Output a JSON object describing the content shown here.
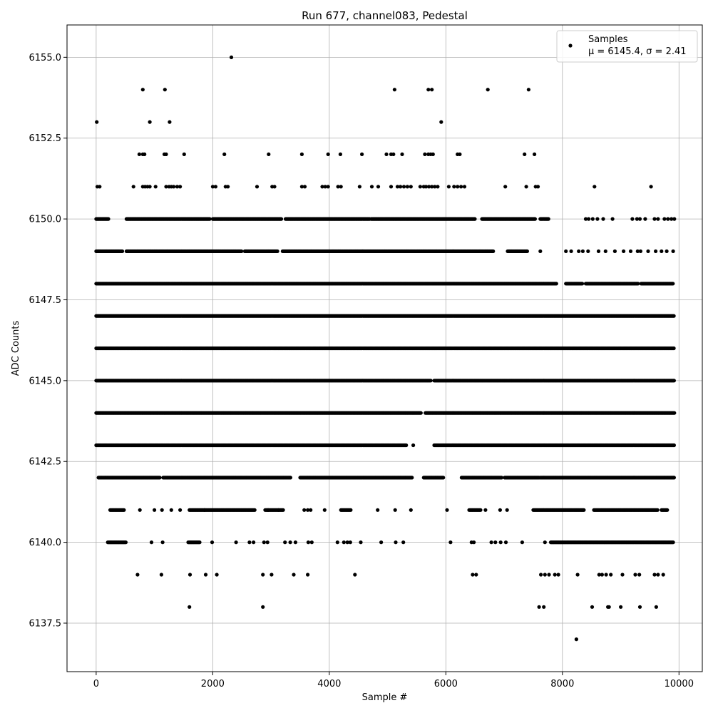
{
  "chart_data": {
    "type": "scatter",
    "title": "Run 677, channel083, Pedestal",
    "xlabel": "Sample #",
    "ylabel": "ADC Counts",
    "xlim": [
      -500,
      10400
    ],
    "ylim": [
      6136.0,
      6156.0
    ],
    "xticks": [
      0,
      2000,
      4000,
      6000,
      8000,
      10000
    ],
    "xtick_labels": [
      "0",
      "2000",
      "4000",
      "6000",
      "8000",
      "10000"
    ],
    "yticks": [
      6137.5,
      6140.0,
      6142.5,
      6145.0,
      6147.5,
      6150.0,
      6152.5,
      6155.0
    ],
    "ytick_labels": [
      "6137.5",
      "6140.0",
      "6142.5",
      "6145.0",
      "6147.5",
      "6150.0",
      "6152.5",
      "6155.0"
    ],
    "grid": true,
    "legend_position": "top-right",
    "legend_label": "Samples",
    "legend_stats_label": "μ = 6145.4, σ = 2.41",
    "marker_color": "#000000",
    "series": [
      {
        "name": "Samples",
        "points": [
          [
            2320,
            6155
          ],
          [
            800,
            6154
          ],
          [
            1180,
            6154
          ],
          [
            5120,
            6154
          ],
          [
            5700,
            6154
          ],
          [
            5760,
            6154
          ],
          [
            6720,
            6154
          ],
          [
            7420,
            6154
          ],
          [
            10,
            6153
          ],
          [
            920,
            6153
          ],
          [
            1260,
            6153
          ],
          [
            5920,
            6153
          ],
          [
            740,
            6152
          ],
          [
            800,
            6152
          ],
          [
            830,
            6152
          ],
          [
            1170,
            6152
          ],
          [
            1200,
            6152
          ],
          [
            1510,
            6152
          ],
          [
            2200,
            6152
          ],
          [
            2960,
            6152
          ],
          [
            3530,
            6152
          ],
          [
            3980,
            6152
          ],
          [
            4190,
            6152
          ],
          [
            4560,
            6152
          ],
          [
            4980,
            6152
          ],
          [
            5060,
            6152
          ],
          [
            5100,
            6152
          ],
          [
            5250,
            6152
          ],
          [
            5640,
            6152
          ],
          [
            5700,
            6152
          ],
          [
            5740,
            6152
          ],
          [
            5780,
            6152
          ],
          [
            6200,
            6152
          ],
          [
            6240,
            6152
          ],
          [
            7350,
            6152
          ],
          [
            7520,
            6152
          ],
          [
            20,
            6151
          ],
          [
            60,
            6151
          ],
          [
            640,
            6151
          ],
          [
            800,
            6151
          ],
          [
            840,
            6151
          ],
          [
            880,
            6151
          ],
          [
            920,
            6151
          ],
          [
            1020,
            6151
          ],
          [
            1200,
            6151
          ],
          [
            1250,
            6151
          ],
          [
            1290,
            6151
          ],
          [
            1330,
            6151
          ],
          [
            1390,
            6151
          ],
          [
            1440,
            6151
          ],
          [
            2000,
            6151
          ],
          [
            2050,
            6151
          ],
          [
            2220,
            6151
          ],
          [
            2260,
            6151
          ],
          [
            2760,
            6151
          ],
          [
            3020,
            6151
          ],
          [
            3060,
            6151
          ],
          [
            3530,
            6151
          ],
          [
            3580,
            6151
          ],
          [
            3880,
            6151
          ],
          [
            3930,
            6151
          ],
          [
            3980,
            6151
          ],
          [
            4150,
            6151
          ],
          [
            4200,
            6151
          ],
          [
            4520,
            6151
          ],
          [
            4730,
            6151
          ],
          [
            4840,
            6151
          ],
          [
            5060,
            6151
          ],
          [
            5170,
            6151
          ],
          [
            5220,
            6151
          ],
          [
            5280,
            6151
          ],
          [
            5340,
            6151
          ],
          [
            5400,
            6151
          ],
          [
            5560,
            6151
          ],
          [
            5620,
            6151
          ],
          [
            5660,
            6151
          ],
          [
            5710,
            6151
          ],
          [
            5760,
            6151
          ],
          [
            5810,
            6151
          ],
          [
            5860,
            6151
          ],
          [
            6050,
            6151
          ],
          [
            6140,
            6151
          ],
          [
            6200,
            6151
          ],
          [
            6260,
            6151
          ],
          [
            6320,
            6151
          ],
          [
            7020,
            6151
          ],
          [
            7380,
            6151
          ],
          [
            7540,
            6151
          ],
          [
            7580,
            6151
          ],
          [
            8550,
            6151
          ],
          [
            9520,
            6151
          ],
          [
            8240,
            6137
          ],
          [
            1600,
            6138
          ],
          [
            2860,
            6138
          ],
          [
            7600,
            6138
          ],
          [
            7680,
            6138
          ],
          [
            8510,
            6138
          ],
          [
            8780,
            6138
          ],
          [
            8800,
            6138
          ],
          [
            9000,
            6138
          ],
          [
            9330,
            6138
          ],
          [
            9610,
            6138
          ],
          [
            710,
            6139
          ],
          [
            1120,
            6139
          ],
          [
            1610,
            6139
          ],
          [
            1880,
            6139
          ],
          [
            2070,
            6139
          ],
          [
            2860,
            6139
          ],
          [
            3010,
            6139
          ],
          [
            3390,
            6139
          ],
          [
            3630,
            6139
          ],
          [
            4440,
            6139
          ],
          [
            6460,
            6139
          ],
          [
            6520,
            6139
          ],
          [
            7630,
            6139
          ],
          [
            7700,
            6139
          ],
          [
            7770,
            6139
          ],
          [
            7870,
            6139
          ],
          [
            7930,
            6139
          ],
          [
            8260,
            6139
          ],
          [
            8630,
            6139
          ],
          [
            8680,
            6139
          ],
          [
            8750,
            6139
          ],
          [
            8830,
            6139
          ],
          [
            9030,
            6139
          ],
          [
            9250,
            6139
          ],
          [
            9320,
            6139
          ],
          [
            9580,
            6139
          ],
          [
            9640,
            6139
          ],
          [
            9730,
            6139
          ]
        ],
        "bands": [
          {
            "y": 6150,
            "ranges": [
              [
                0,
                220
              ],
              [
                520,
                1960
              ],
              [
                2000,
                3180
              ],
              [
                3250,
                4700
              ],
              [
                4720,
                6500
              ],
              [
                6620,
                7540
              ],
              [
                7620,
                7760
              ]
            ],
            "extra": [
              8400,
              8450,
              8520,
              8600,
              8700,
              8860,
              9200,
              9280,
              9330,
              9420,
              9580,
              9640,
              9750,
              9810,
              9870,
              9920
            ]
          },
          {
            "y": 6149,
            "ranges": [
              [
                0,
                450
              ],
              [
                520,
                2500
              ],
              [
                2550,
                3120
              ],
              [
                3200,
                6820
              ],
              [
                7060,
                7400
              ]
            ],
            "extra": [
              7620,
              8060,
              8150,
              8280,
              8350,
              8440,
              8620,
              8740,
              8900,
              9050,
              9170,
              9290,
              9340,
              9470,
              9600,
              9700,
              9790,
              9900
            ]
          },
          {
            "y": 6148,
            "ranges": [
              [
                0,
                7900
              ],
              [
                8060,
                8340
              ],
              [
                8400,
                9300
              ],
              [
                9350,
                9900
              ]
            ]
          },
          {
            "y": 6147,
            "ranges": [
              [
                0,
                9920
              ]
            ]
          },
          {
            "y": 6146,
            "ranges": [
              [
                0,
                9920
              ]
            ]
          },
          {
            "y": 6145,
            "ranges": [
              [
                0,
                5750
              ],
              [
                5800,
                9920
              ]
            ]
          },
          {
            "y": 6144,
            "ranges": [
              [
                0,
                5580
              ],
              [
                5650,
                9920
              ]
            ]
          },
          {
            "y": 6143,
            "ranges": [
              [
                0,
                5320
              ],
              [
                5800,
                9920
              ]
            ],
            "extra": [
              5440
            ]
          },
          {
            "y": 6142,
            "ranges": [
              [
                40,
                1100
              ],
              [
                1150,
                3340
              ],
              [
                3500,
                5420
              ],
              [
                5620,
                5960
              ],
              [
                6270,
                6960
              ],
              [
                7010,
                7600
              ],
              [
                7620,
                9920
              ]
            ]
          },
          {
            "y": 6141,
            "ranges": [
              [
                240,
                480
              ],
              [
                1600,
                2720
              ],
              [
                2900,
                3220
              ],
              [
                4200,
                4380
              ],
              [
                6400,
                6600
              ],
              [
                7500,
                8380
              ],
              [
                8540,
                9640
              ],
              [
                9700,
                9800
              ]
            ],
            "extra": [
              750,
              1000,
              1130,
              1290,
              1440,
              1860,
              2950,
              3130,
              3570,
              3630,
              3680,
              3920,
              4830,
              5130,
              5400,
              6020,
              6680,
              6930,
              7050
            ]
          },
          {
            "y": 6140,
            "ranges": [
              [
                200,
                520
              ],
              [
                1580,
                1780
              ],
              [
                7800,
                9900
              ]
            ],
            "extra": [
              950,
              1140,
              1990,
              2400,
              2630,
              2700,
              2880,
              2940,
              3240,
              3330,
              3420,
              3640,
              3700,
              4140,
              4250,
              4310,
              4360,
              4540,
              4890,
              5140,
              5270,
              6080,
              6440,
              6480,
              6780,
              6850,
              6940,
              7030,
              7310,
              7700
            ]
          }
        ]
      }
    ]
  }
}
